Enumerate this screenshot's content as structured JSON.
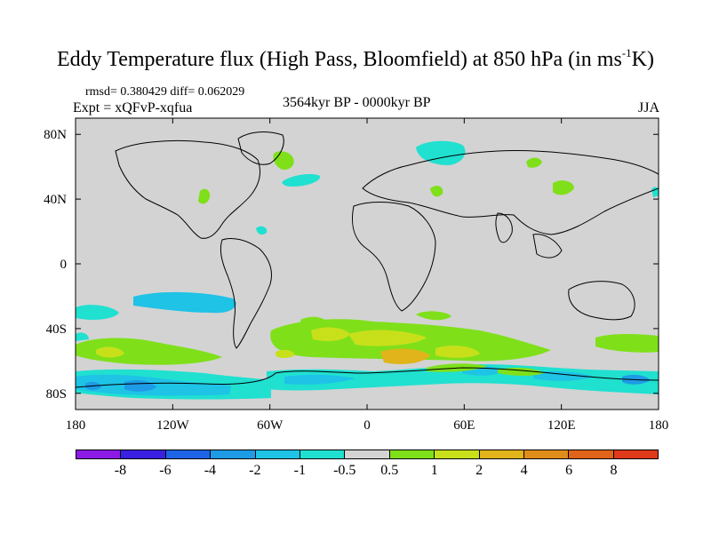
{
  "title": {
    "main": "Eddy Temperature flux (High Pass, Bloomfield) at 850 hPa (in ms",
    "sup": "-1",
    "tail": "K)"
  },
  "subtitle": {
    "stats": "rmsd= 0.380429 diff= 0.062029",
    "experiment": "Expt = xQFvP-xqfua",
    "period": "3564kyr BP - 0000kyr BP",
    "season": "JJA"
  },
  "map": {
    "projection": "cylindrical equidistant",
    "lon_range": [
      -180,
      180
    ],
    "lat_range": [
      -90,
      90
    ],
    "land_color": "#d3d3d3",
    "coast_color": "#000000",
    "lon_ticks": [
      {
        "lon": -180,
        "label": "180"
      },
      {
        "lon": -120,
        "label": "120W"
      },
      {
        "lon": -60,
        "label": "60W"
      },
      {
        "lon": 0,
        "label": "0"
      },
      {
        "lon": 60,
        "label": "60E"
      },
      {
        "lon": 120,
        "label": "120E"
      },
      {
        "lon": 180,
        "label": "180"
      }
    ],
    "lat_ticks": [
      {
        "lat": 80,
        "label": "80N"
      },
      {
        "lat": 40,
        "label": "40N"
      },
      {
        "lat": 0,
        "label": "0"
      },
      {
        "lat": -40,
        "label": "40S"
      },
      {
        "lat": -80,
        "label": "80S"
      }
    ]
  },
  "colorbar": {
    "colors": [
      "#8c1ae6",
      "#3a20e0",
      "#1e64e6",
      "#1e9be6",
      "#1ec3e6",
      "#20e0d0",
      "#d3d3d3",
      "#7fe01a",
      "#c8e01a",
      "#e0b41a",
      "#e08c1a",
      "#e0641a",
      "#e03a1a"
    ],
    "labels": [
      "-8",
      "-6",
      "-4",
      "-2",
      "-1",
      "-0.5",
      "0.5",
      "1",
      "2",
      "4",
      "6",
      "8"
    ]
  }
}
